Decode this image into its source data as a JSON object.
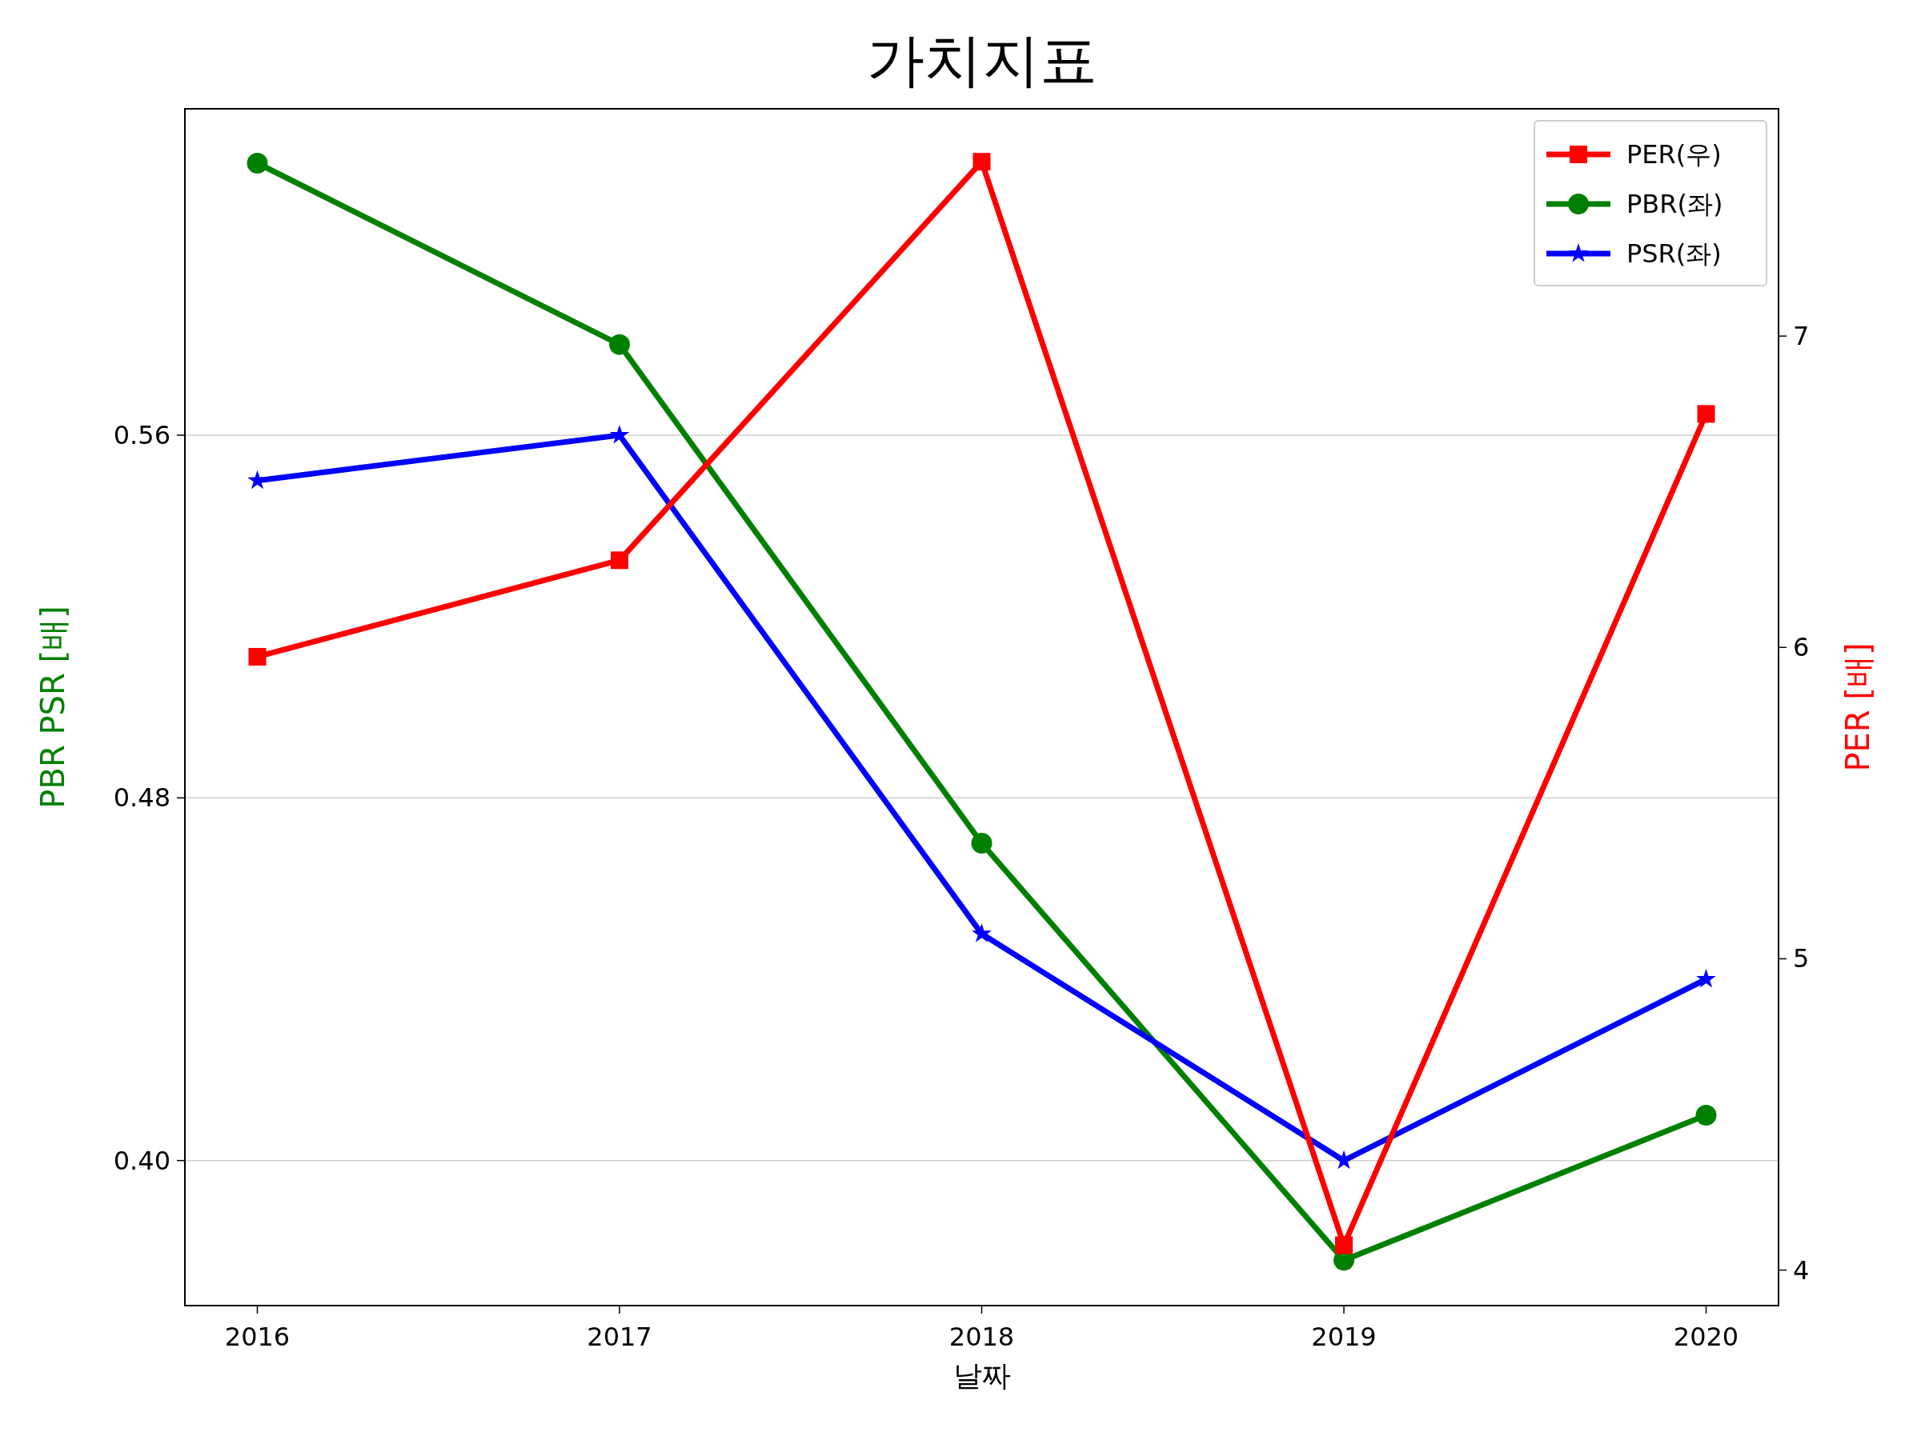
{
  "chart_data": {
    "type": "line",
    "title": "가치지표",
    "xlabel": "날짜",
    "ylabel": "PBR PSR [배]",
    "y2label": "PER [배]",
    "categories": [
      "2016",
      "2017",
      "2018",
      "2019",
      "2020"
    ],
    "series": [
      {
        "name": "PER(우)",
        "color": "#ff0000",
        "axis": "y2",
        "marker": "square",
        "values": [
          5.97,
          6.28,
          7.56,
          4.08,
          6.75
        ]
      },
      {
        "name": "PBR(좌)",
        "color": "#008000",
        "marker": "circle",
        "values": [
          0.62,
          0.58,
          0.47,
          0.378,
          0.41
        ]
      },
      {
        "name": "PSR(좌)",
        "color": "#0000ff",
        "marker": "star",
        "values": [
          0.55,
          0.56,
          0.45,
          0.4,
          0.44
        ]
      }
    ],
    "ylim": [
      0.368,
      0.632
    ],
    "yticks": [
      {
        "value": 0.4,
        "label": "0.40"
      },
      {
        "value": 0.48,
        "label": "0.48"
      },
      {
        "value": 0.56,
        "label": "0.56"
      }
    ],
    "y2lim": [
      3.886,
      7.73
    ],
    "y2ticks": [
      4,
      5,
      6,
      7
    ],
    "grid": "y",
    "legend": "top right",
    "line_style": "solid"
  }
}
